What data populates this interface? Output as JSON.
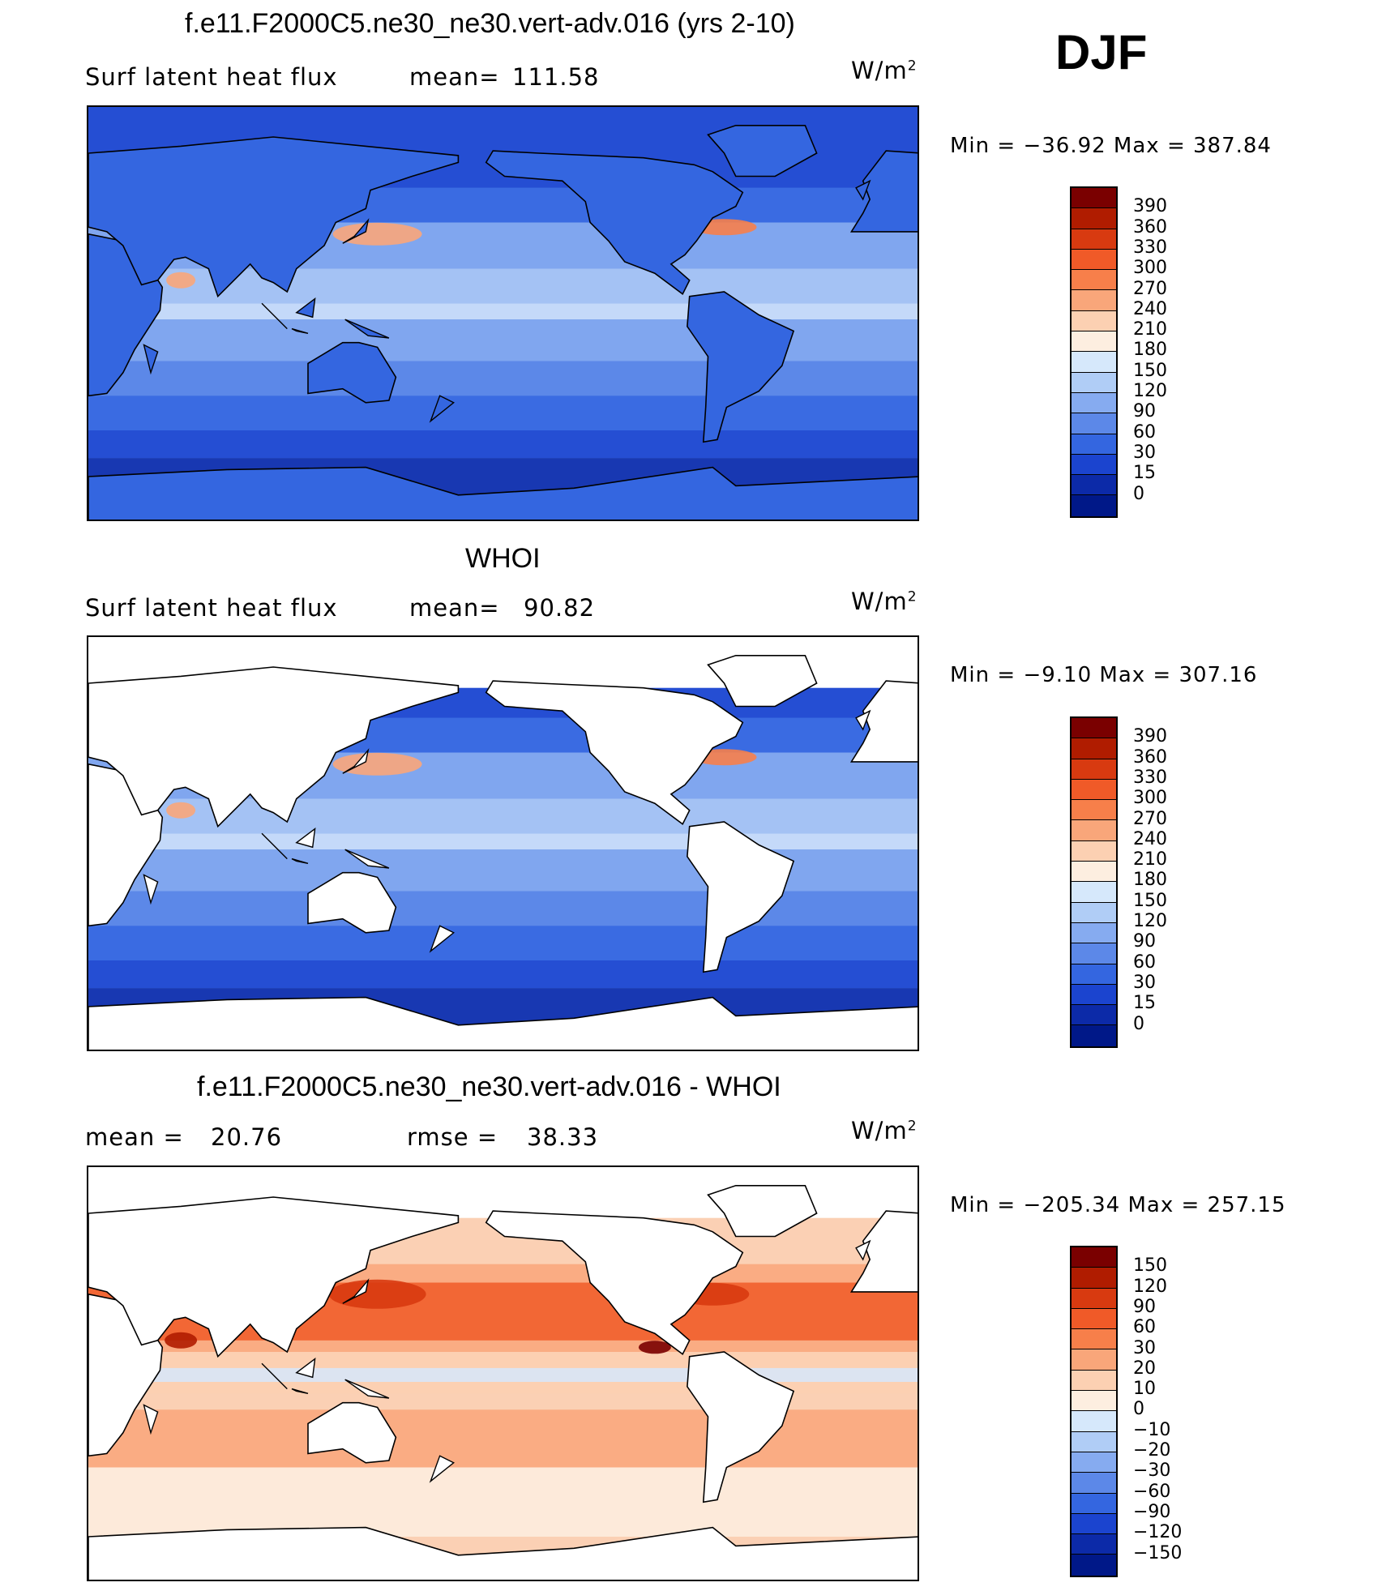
{
  "season": "DJF",
  "units_main": "W/m",
  "units_sup": "2",
  "panels": [
    {
      "title": "f.e11.F2000C5.ne30_ne30.vert-adv.016 (yrs 2-10)",
      "field_label": "Surf latent heat flux",
      "stat1_label": "mean=",
      "stat1_value": "111.58",
      "stat2_label": "",
      "stat2_value": "",
      "min_max": "Min = −36.92 Max = 387.84",
      "fill": "full"
    },
    {
      "title": "WHOI",
      "field_label": "Surf latent heat flux",
      "stat1_label": "mean=",
      "stat1_value": "90.82",
      "stat2_label": "",
      "stat2_value": "",
      "min_max": "Min =  −9.10 Max = 307.16",
      "fill": "ocean"
    },
    {
      "title": "f.e11.F2000C5.ne30_ne30.vert-adv.016 - WHOI",
      "field_label": "",
      "stat1_label": "mean =",
      "stat1_value": "20.76",
      "stat2_label": "rmse =",
      "stat2_value": "38.33",
      "min_max": "Min = −205.34 Max = 257.15",
      "fill": "ocean-diff"
    }
  ],
  "colorbar_abs": {
    "labels": [
      "390",
      "360",
      "330",
      "300",
      "270",
      "240",
      "210",
      "180",
      "150",
      "120",
      "90",
      "60",
      "30",
      "15",
      "0"
    ],
    "colors": [
      "#7a0000",
      "#b01c00",
      "#d83a10",
      "#f05a28",
      "#f77f4a",
      "#f9a67a",
      "#fcd0b2",
      "#fdeee0",
      "#d6e8fb",
      "#b0cdf6",
      "#86abf0",
      "#5c88e8",
      "#3466e0",
      "#1b44cf",
      "#0c2aa8",
      "#001888"
    ]
  },
  "colorbar_diff": {
    "labels": [
      "150",
      "120",
      "90",
      "60",
      "30",
      "20",
      "10",
      "0",
      "−10",
      "−20",
      "−30",
      "−60",
      "−90",
      "−120",
      "−150"
    ],
    "colors": [
      "#7a0000",
      "#b01c00",
      "#d83a10",
      "#f05a28",
      "#f77f4a",
      "#f9a67a",
      "#fcd0b2",
      "#fdeee0",
      "#d6e8fb",
      "#b0cdf6",
      "#86abf0",
      "#5c88e8",
      "#3466e0",
      "#1b44cf",
      "#0c2aa8",
      "#001888"
    ]
  }
}
